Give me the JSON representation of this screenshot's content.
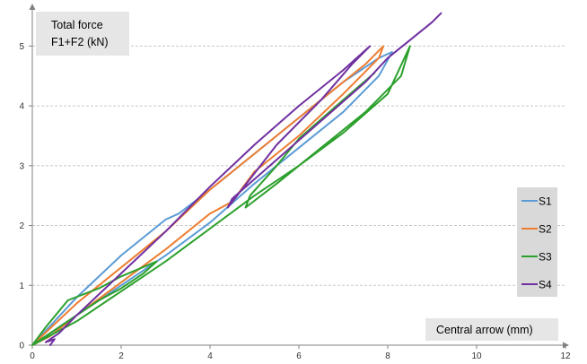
{
  "chart_data": {
    "type": "line",
    "ylabel_lines": [
      "Total force",
      "F1+F2 (kN)"
    ],
    "xlabel": "Central arrow (mm)",
    "xlim": [
      0,
      12
    ],
    "ylim": [
      0,
      5.5
    ],
    "x_ticks": [
      0,
      2,
      4,
      6,
      8,
      10,
      12
    ],
    "y_ticks": [
      0,
      1,
      2,
      3,
      4,
      5
    ],
    "grid": "horizontal dashed",
    "legend_position": "right",
    "series": [
      {
        "name": "S1",
        "color": "#5b9bd5",
        "x": [
          0,
          0.5,
          1.0,
          2.0,
          3.0,
          3.3,
          4.0,
          5.0,
          6.0,
          7.0,
          7.8,
          8.1,
          7.8,
          7.0,
          6.0,
          5.0,
          4.0,
          3.0,
          2.0,
          1.0,
          0.3,
          0.0
        ],
        "y": [
          0,
          0.4,
          0.8,
          1.5,
          2.1,
          2.2,
          2.6,
          3.2,
          3.8,
          4.4,
          4.8,
          4.9,
          4.5,
          3.9,
          3.3,
          2.7,
          2.05,
          1.5,
          1.0,
          0.5,
          0.15,
          0
        ]
      },
      {
        "name": "S2",
        "color": "#ed7d31",
        "x": [
          0,
          0.5,
          1.0,
          2.0,
          3.0,
          4.0,
          4.5,
          5.0,
          6.0,
          7.0,
          7.5,
          7.9,
          7.8,
          7.0,
          6.0,
          5.0,
          4.5,
          4.0,
          3.0,
          2.0,
          1.0,
          0.4,
          0.0
        ],
        "y": [
          0,
          0.35,
          0.7,
          1.3,
          1.9,
          2.6,
          2.9,
          3.2,
          3.8,
          4.4,
          4.7,
          5.0,
          4.8,
          4.2,
          3.5,
          2.9,
          2.4,
          2.2,
          1.6,
          1.05,
          0.5,
          0.15,
          0
        ]
      },
      {
        "name": "S3",
        "color": "#2ca02c",
        "x": [
          0,
          0.3,
          0.8,
          1.5,
          2.0,
          2.8,
          2.5,
          2.0,
          1.5,
          1.0,
          0.5,
          0.0,
          1.0,
          2.0,
          3.0,
          4.0,
          5.0,
          6.0,
          7.0,
          8.0,
          8.5,
          8.3,
          7.5,
          6.5,
          5.5,
          4.8,
          4.9,
          5.5,
          6.0,
          7.0,
          7.7
        ],
        "y": [
          0,
          0.3,
          0.75,
          0.95,
          1.15,
          1.4,
          1.2,
          0.95,
          0.75,
          0.5,
          0.25,
          0,
          0.4,
          0.9,
          1.4,
          1.95,
          2.5,
          3.0,
          3.55,
          4.2,
          5.0,
          4.5,
          3.9,
          3.3,
          2.7,
          2.3,
          2.5,
          3.0,
          3.45,
          4.1,
          4.55
        ]
      },
      {
        "name": "S4",
        "color": "#7030a0",
        "x": [
          0.4,
          0.5,
          0.3,
          0.6,
          1.0,
          2.0,
          3.0,
          4.0,
          5.0,
          6.0,
          7.0,
          7.6,
          7.2,
          6.5,
          5.5,
          4.4,
          4.5,
          5.5,
          6.5,
          7.5,
          8.0,
          8.5,
          9.0,
          9.2
        ],
        "y": [
          0,
          0.1,
          0.05,
          0.2,
          0.5,
          1.2,
          1.9,
          2.65,
          3.35,
          4.0,
          4.6,
          5.0,
          4.7,
          4.1,
          3.35,
          2.3,
          2.45,
          3.1,
          3.75,
          4.4,
          4.8,
          5.1,
          5.4,
          5.55
        ]
      }
    ]
  }
}
